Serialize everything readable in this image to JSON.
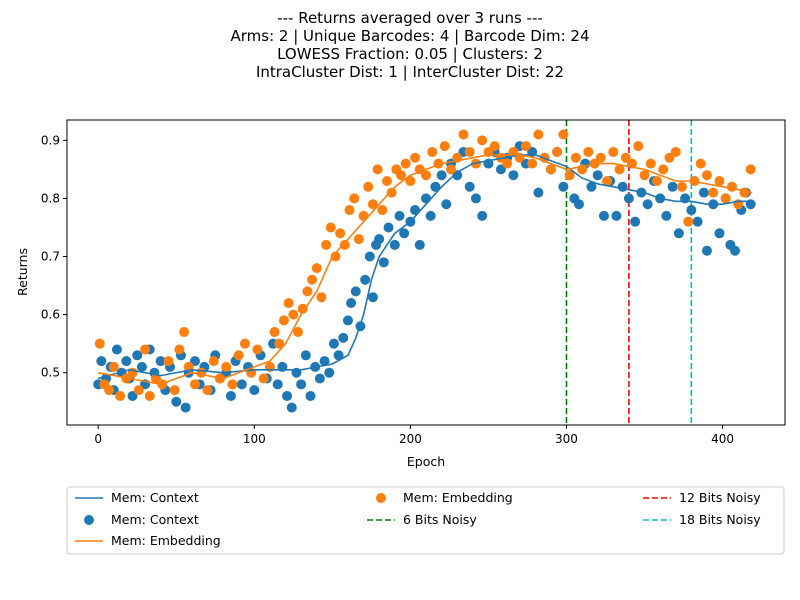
{
  "chart_data": {
    "type": "line",
    "title_lines": [
      "--- Returns averaged over 3 runs ---",
      "Arms: 2 | Unique Barcodes: 4 | Barcode Dim: 24",
      "LOWESS Fraction: 0.05 | Clusters: 2",
      "IntraCluster Dist: 1 | InterCluster Dist: 22"
    ],
    "xlabel": "Epoch",
    "ylabel": "Returns",
    "xlim": [
      -20,
      440
    ],
    "ylim": [
      0.41,
      0.935
    ],
    "xticks": [
      0,
      100,
      200,
      300,
      400
    ],
    "yticks": [
      0.5,
      0.6,
      0.7,
      0.8,
      0.9
    ],
    "ytick_labels": [
      "0.5",
      "0.6",
      "0.7",
      "0.8",
      "0.9"
    ],
    "grid": false,
    "legend_position": "below-plot",
    "colors": {
      "context": "#1f77b4",
      "embedding": "#ff7f0e",
      "noise6": "#008000",
      "noise12": "#ff0000",
      "noise18": "#00bfbf"
    },
    "series": [
      {
        "name": "Mem: Context",
        "kind": "lowess-line",
        "color": "#1f77b4",
        "x": [
          0,
          20,
          40,
          60,
          80,
          100,
          120,
          130,
          140,
          150,
          160,
          165,
          170,
          175,
          180,
          185,
          190,
          200,
          210,
          220,
          230,
          240,
          250,
          260,
          270,
          280,
          290,
          300,
          310,
          320,
          330,
          340,
          350,
          360,
          370,
          380,
          390,
          400,
          410,
          419
        ],
        "y": [
          0.49,
          0.505,
          0.495,
          0.505,
          0.5,
          0.505,
          0.505,
          0.505,
          0.51,
          0.515,
          0.53,
          0.56,
          0.6,
          0.66,
          0.7,
          0.72,
          0.74,
          0.76,
          0.79,
          0.82,
          0.845,
          0.86,
          0.865,
          0.87,
          0.875,
          0.875,
          0.865,
          0.855,
          0.835,
          0.825,
          0.82,
          0.815,
          0.81,
          0.8,
          0.795,
          0.795,
          0.79,
          0.79,
          0.795,
          0.795
        ]
      },
      {
        "name": "Mem: Context",
        "kind": "scatter",
        "color": "#1f77b4",
        "points": [
          [
            0,
            0.48
          ],
          [
            2,
            0.52
          ],
          [
            5,
            0.49
          ],
          [
            8,
            0.51
          ],
          [
            10,
            0.47
          ],
          [
            12,
            0.54
          ],
          [
            15,
            0.5
          ],
          [
            18,
            0.52
          ],
          [
            20,
            0.49
          ],
          [
            22,
            0.46
          ],
          [
            25,
            0.53
          ],
          [
            28,
            0.51
          ],
          [
            30,
            0.48
          ],
          [
            33,
            0.54
          ],
          [
            36,
            0.5
          ],
          [
            40,
            0.52
          ],
          [
            43,
            0.47
          ],
          [
            46,
            0.51
          ],
          [
            50,
            0.45
          ],
          [
            53,
            0.53
          ],
          [
            56,
            0.44
          ],
          [
            58,
            0.5
          ],
          [
            62,
            0.52
          ],
          [
            65,
            0.48
          ],
          [
            68,
            0.51
          ],
          [
            72,
            0.47
          ],
          [
            75,
            0.53
          ],
          [
            78,
            0.49
          ],
          [
            82,
            0.5
          ],
          [
            85,
            0.46
          ],
          [
            88,
            0.52
          ],
          [
            92,
            0.48
          ],
          [
            96,
            0.51
          ],
          [
            100,
            0.47
          ],
          [
            104,
            0.53
          ],
          [
            108,
            0.49
          ],
          [
            112,
            0.55
          ],
          [
            115,
            0.48
          ],
          [
            118,
            0.51
          ],
          [
            121,
            0.46
          ],
          [
            124,
            0.44
          ],
          [
            127,
            0.5
          ],
          [
            130,
            0.48
          ],
          [
            133,
            0.53
          ],
          [
            136,
            0.46
          ],
          [
            139,
            0.51
          ],
          [
            142,
            0.49
          ],
          [
            145,
            0.52
          ],
          [
            148,
            0.5
          ],
          [
            151,
            0.55
          ],
          [
            154,
            0.53
          ],
          [
            157,
            0.56
          ],
          [
            160,
            0.59
          ],
          [
            162,
            0.62
          ],
          [
            165,
            0.64
          ],
          [
            168,
            0.58
          ],
          [
            171,
            0.66
          ],
          [
            174,
            0.7
          ],
          [
            176,
            0.63
          ],
          [
            178,
            0.72
          ],
          [
            180,
            0.73
          ],
          [
            183,
            0.69
          ],
          [
            186,
            0.75
          ],
          [
            190,
            0.72
          ],
          [
            193,
            0.77
          ],
          [
            196,
            0.74
          ],
          [
            200,
            0.76
          ],
          [
            203,
            0.78
          ],
          [
            206,
            0.72
          ],
          [
            210,
            0.8
          ],
          [
            213,
            0.77
          ],
          [
            216,
            0.82
          ],
          [
            220,
            0.84
          ],
          [
            223,
            0.79
          ],
          [
            226,
            0.86
          ],
          [
            230,
            0.84
          ],
          [
            234,
            0.88
          ],
          [
            238,
            0.82
          ],
          [
            242,
            0.8
          ],
          [
            246,
            0.77
          ],
          [
            250,
            0.86
          ],
          [
            254,
            0.88
          ],
          [
            258,
            0.85
          ],
          [
            262,
            0.87
          ],
          [
            266,
            0.84
          ],
          [
            270,
            0.89
          ],
          [
            274,
            0.86
          ],
          [
            278,
            0.88
          ],
          [
            282,
            0.81
          ],
          [
            286,
            0.87
          ],
          [
            290,
            0.85
          ],
          [
            294,
            0.88
          ],
          [
            298,
            0.82
          ],
          [
            302,
            0.84
          ],
          [
            305,
            0.8
          ],
          [
            308,
            0.79
          ],
          [
            312,
            0.86
          ],
          [
            316,
            0.82
          ],
          [
            320,
            0.84
          ],
          [
            324,
            0.77
          ],
          [
            328,
            0.83
          ],
          [
            332,
            0.77
          ],
          [
            336,
            0.82
          ],
          [
            340,
            0.8
          ],
          [
            344,
            0.76
          ],
          [
            348,
            0.81
          ],
          [
            352,
            0.79
          ],
          [
            356,
            0.83
          ],
          [
            360,
            0.8
          ],
          [
            364,
            0.77
          ],
          [
            368,
            0.82
          ],
          [
            372,
            0.74
          ],
          [
            376,
            0.8
          ],
          [
            380,
            0.78
          ],
          [
            384,
            0.76
          ],
          [
            388,
            0.81
          ],
          [
            390,
            0.71
          ],
          [
            394,
            0.79
          ],
          [
            398,
            0.74
          ],
          [
            402,
            0.8
          ],
          [
            405,
            0.72
          ],
          [
            408,
            0.71
          ],
          [
            412,
            0.78
          ],
          [
            415,
            0.81
          ],
          [
            418,
            0.79
          ]
        ]
      },
      {
        "name": "Mem: Embedding",
        "kind": "lowess-line",
        "color": "#ff7f0e",
        "x": [
          0,
          20,
          40,
          60,
          80,
          100,
          110,
          120,
          130,
          140,
          150,
          160,
          170,
          180,
          190,
          200,
          210,
          220,
          230,
          240,
          250,
          260,
          270,
          280,
          290,
          300,
          310,
          320,
          330,
          340,
          350,
          360,
          370,
          380,
          390,
          400,
          410,
          419
        ],
        "y": [
          0.5,
          0.49,
          0.48,
          0.5,
          0.49,
          0.51,
          0.52,
          0.55,
          0.6,
          0.64,
          0.7,
          0.73,
          0.76,
          0.79,
          0.82,
          0.84,
          0.85,
          0.86,
          0.865,
          0.87,
          0.875,
          0.875,
          0.875,
          0.87,
          0.86,
          0.85,
          0.855,
          0.86,
          0.86,
          0.855,
          0.85,
          0.84,
          0.83,
          0.83,
          0.825,
          0.82,
          0.815,
          0.81
        ]
      },
      {
        "name": "Mem: Embedding",
        "kind": "scatter",
        "color": "#ff7f0e",
        "points": [
          [
            1,
            0.55
          ],
          [
            4,
            0.48
          ],
          [
            7,
            0.47
          ],
          [
            10,
            0.51
          ],
          [
            14,
            0.46
          ],
          [
            18,
            0.49
          ],
          [
            22,
            0.5
          ],
          [
            26,
            0.47
          ],
          [
            30,
            0.54
          ],
          [
            33,
            0.46
          ],
          [
            37,
            0.49
          ],
          [
            41,
            0.48
          ],
          [
            45,
            0.52
          ],
          [
            49,
            0.47
          ],
          [
            52,
            0.54
          ],
          [
            55,
            0.57
          ],
          [
            58,
            0.51
          ],
          [
            62,
            0.48
          ],
          [
            66,
            0.5
          ],
          [
            70,
            0.47
          ],
          [
            74,
            0.52
          ],
          [
            78,
            0.49
          ],
          [
            82,
            0.51
          ],
          [
            86,
            0.48
          ],
          [
            90,
            0.53
          ],
          [
            94,
            0.55
          ],
          [
            98,
            0.5
          ],
          [
            102,
            0.54
          ],
          [
            106,
            0.49
          ],
          [
            110,
            0.51
          ],
          [
            113,
            0.57
          ],
          [
            116,
            0.55
          ],
          [
            119,
            0.59
          ],
          [
            122,
            0.62
          ],
          [
            125,
            0.6
          ],
          [
            128,
            0.57
          ],
          [
            131,
            0.61
          ],
          [
            134,
            0.64
          ],
          [
            137,
            0.66
          ],
          [
            140,
            0.68
          ],
          [
            143,
            0.63
          ],
          [
            146,
            0.72
          ],
          [
            149,
            0.75
          ],
          [
            152,
            0.7
          ],
          [
            155,
            0.74
          ],
          [
            158,
            0.72
          ],
          [
            161,
            0.78
          ],
          [
            164,
            0.8
          ],
          [
            167,
            0.73
          ],
          [
            170,
            0.77
          ],
          [
            173,
            0.82
          ],
          [
            176,
            0.79
          ],
          [
            179,
            0.85
          ],
          [
            182,
            0.78
          ],
          [
            185,
            0.83
          ],
          [
            188,
            0.81
          ],
          [
            191,
            0.85
          ],
          [
            194,
            0.84
          ],
          [
            197,
            0.86
          ],
          [
            200,
            0.83
          ],
          [
            203,
            0.87
          ],
          [
            206,
            0.85
          ],
          [
            210,
            0.84
          ],
          [
            214,
            0.88
          ],
          [
            218,
            0.86
          ],
          [
            222,
            0.89
          ],
          [
            226,
            0.85
          ],
          [
            230,
            0.87
          ],
          [
            234,
            0.91
          ],
          [
            238,
            0.88
          ],
          [
            242,
            0.86
          ],
          [
            246,
            0.9
          ],
          [
            250,
            0.88
          ],
          [
            254,
            0.89
          ],
          [
            258,
            0.87
          ],
          [
            262,
            0.86
          ],
          [
            266,
            0.88
          ],
          [
            270,
            0.87
          ],
          [
            274,
            0.89
          ],
          [
            278,
            0.86
          ],
          [
            282,
            0.91
          ],
          [
            286,
            0.87
          ],
          [
            290,
            0.85
          ],
          [
            294,
            0.88
          ],
          [
            298,
            0.91
          ],
          [
            302,
            0.84
          ],
          [
            306,
            0.87
          ],
          [
            310,
            0.85
          ],
          [
            314,
            0.88
          ],
          [
            318,
            0.86
          ],
          [
            322,
            0.87
          ],
          [
            326,
            0.83
          ],
          [
            330,
            0.88
          ],
          [
            334,
            0.85
          ],
          [
            338,
            0.87
          ],
          [
            342,
            0.86
          ],
          [
            346,
            0.89
          ],
          [
            350,
            0.84
          ],
          [
            354,
            0.86
          ],
          [
            358,
            0.83
          ],
          [
            362,
            0.85
          ],
          [
            366,
            0.87
          ],
          [
            370,
            0.88
          ],
          [
            374,
            0.82
          ],
          [
            378,
            0.76
          ],
          [
            382,
            0.83
          ],
          [
            386,
            0.86
          ],
          [
            390,
            0.84
          ],
          [
            394,
            0.81
          ],
          [
            398,
            0.83
          ],
          [
            402,
            0.8
          ],
          [
            406,
            0.82
          ],
          [
            410,
            0.79
          ],
          [
            414,
            0.81
          ],
          [
            418,
            0.85
          ]
        ]
      },
      {
        "name": "6 Bits Noisy",
        "kind": "vline",
        "x": 300,
        "color": "#008000"
      },
      {
        "name": "12 Bits Noisy",
        "kind": "vline",
        "x": 340,
        "color": "#ff0000"
      },
      {
        "name": "18 Bits Noisy",
        "kind": "vline",
        "x": 380,
        "color": "#00bfbf"
      }
    ],
    "legend": [
      {
        "label": "Mem: Context",
        "marker": "line",
        "color": "#1f77b4"
      },
      {
        "label": "Mem: Context",
        "marker": "dot",
        "color": "#1f77b4"
      },
      {
        "label": "Mem: Embedding",
        "marker": "line",
        "color": "#ff7f0e"
      },
      {
        "label": "Mem: Embedding",
        "marker": "dot",
        "color": "#ff7f0e"
      },
      {
        "label": "6 Bits Noisy",
        "marker": "dashed",
        "color": "#008000"
      },
      {
        "label": "12 Bits Noisy",
        "marker": "dashed",
        "color": "#ff0000"
      },
      {
        "label": "18 Bits Noisy",
        "marker": "dashed",
        "color": "#00bfbf"
      }
    ]
  }
}
